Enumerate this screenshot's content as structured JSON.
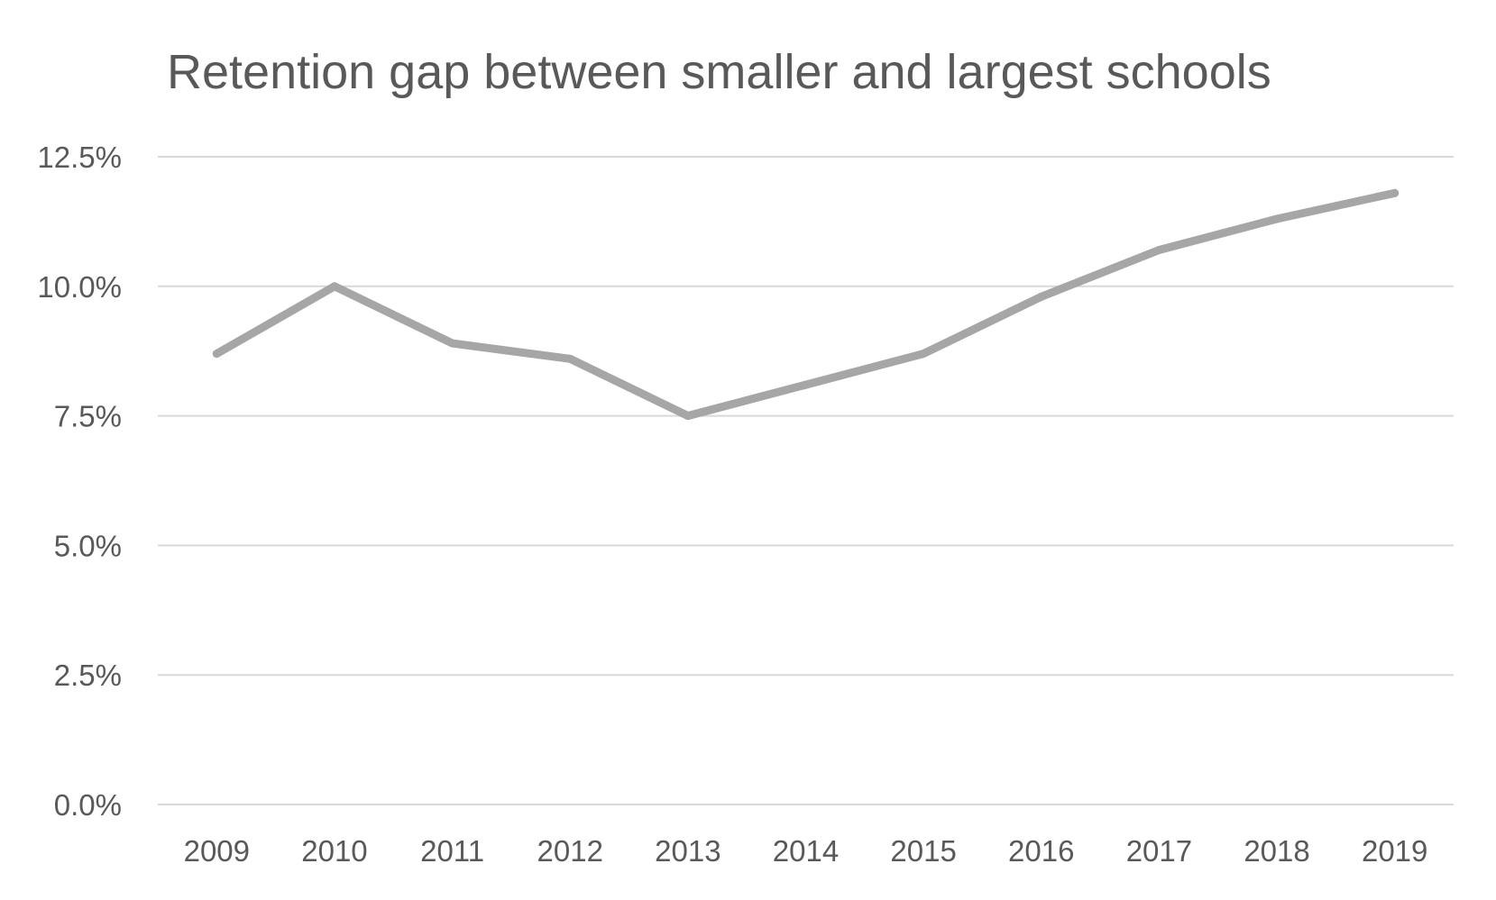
{
  "chart_data": {
    "type": "line",
    "title": "Retention gap between smaller and largest schools",
    "xlabel": "",
    "ylabel": "",
    "categories": [
      "2009",
      "2010",
      "2011",
      "2012",
      "2013",
      "2014",
      "2015",
      "2016",
      "2017",
      "2018",
      "2019"
    ],
    "series": [
      {
        "values": [
          8.7,
          10.0,
          8.9,
          8.6,
          7.5,
          8.1,
          8.7,
          9.8,
          10.7,
          11.3,
          11.8
        ]
      }
    ],
    "ylim": [
      0,
      12.5
    ],
    "yticks": [
      0.0,
      2.5,
      5.0,
      7.5,
      10.0,
      12.5
    ],
    "ytick_labels": [
      "0.0%",
      "2.5%",
      "5.0%",
      "7.5%",
      "10.0%",
      "12.5%"
    ],
    "grid": true,
    "legend": "none",
    "colors": {
      "line": "#a6a6a6",
      "grid": "#d9d9d9",
      "text": "#595959"
    }
  }
}
